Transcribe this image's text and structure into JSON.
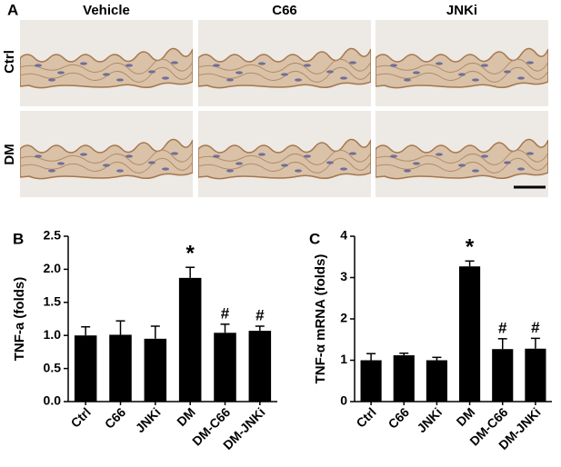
{
  "figure_a": {
    "label": "A",
    "columns": [
      "Vehicle",
      "C66",
      "JNKi"
    ],
    "rows": [
      "Ctrl",
      "DM"
    ]
  },
  "chart_data": [
    {
      "type": "bar",
      "panel_label": "B",
      "y_label": "TNF-a (folds)",
      "categories": [
        "Ctrl",
        "C66",
        "JNKi",
        "DM",
        "DM-C66",
        "DM-JNKi"
      ],
      "values": [
        1.0,
        1.01,
        0.95,
        1.87,
        1.04,
        1.07
      ],
      "errors": [
        0.13,
        0.21,
        0.19,
        0.16,
        0.13,
        0.07
      ],
      "annotations": [
        null,
        null,
        null,
        "*",
        "#",
        "#"
      ],
      "color": "#000000",
      "ylim": [
        0,
        2.5
      ],
      "yticks": [
        {
          "value": 0,
          "label": "0.0"
        },
        0.5,
        {
          "value": 1,
          "label": "1.0"
        },
        1.5,
        {
          "value": 2,
          "label": "2.0"
        },
        2.5
      ]
    },
    {
      "type": "bar",
      "panel_label": "C",
      "y_label": "TNF-α mRNA (folds)",
      "categories": [
        "Ctrl",
        "C66",
        "JNKi",
        "DM",
        "DM-C66",
        "DM-JNKi"
      ],
      "values": [
        1.0,
        1.12,
        1.0,
        3.27,
        1.27,
        1.28
      ],
      "errors": [
        0.16,
        0.05,
        0.07,
        0.13,
        0.25,
        0.25
      ],
      "annotations": [
        null,
        null,
        null,
        "*",
        "#",
        "#"
      ],
      "color": "#000000",
      "ylim": [
        0,
        4
      ],
      "yticks": [
        0,
        1,
        2,
        3,
        4
      ]
    }
  ]
}
